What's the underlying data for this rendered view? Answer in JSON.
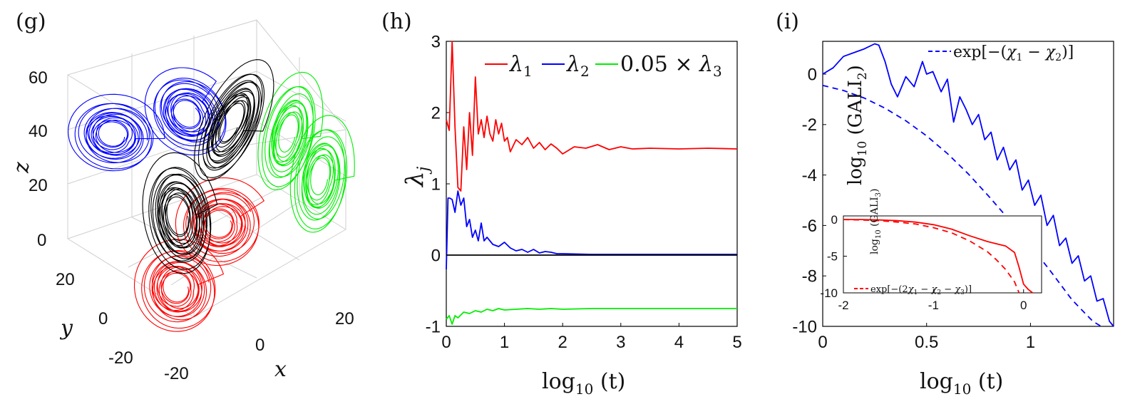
{
  "chart_data": [
    {
      "panel": "(g)",
      "type": "line",
      "projection": "3d",
      "xlabel": "x",
      "ylabel": "y",
      "zlabel": "z",
      "x_ticks": [
        "-20",
        "0",
        "20"
      ],
      "y_ticks": [
        "-20",
        "0",
        "20"
      ],
      "z_ticks": [
        "0",
        "20",
        "40",
        "60"
      ],
      "zlim": [
        0,
        60
      ],
      "series": [
        {
          "color": "#0000ff"
        },
        {
          "color": "#000000"
        },
        {
          "color": "#00ee00"
        },
        {
          "color": "#ff0000"
        }
      ],
      "grid": true
    },
    {
      "panel": "(h)",
      "type": "line",
      "xlabel": "log10 (t)",
      "ylabel": "λj",
      "xlim": [
        0,
        5
      ],
      "ylim": [
        -1,
        3
      ],
      "x_ticks": [
        "0",
        "1",
        "2",
        "3",
        "4",
        "5"
      ],
      "y_ticks": [
        "-1",
        "0",
        "1",
        "2",
        "3"
      ],
      "legend": {
        "placement": "top-right",
        "entries": [
          "λ1",
          "λ2",
          "0.05 × λ3"
        ]
      },
      "series": [
        {
          "name": "λ1",
          "color": "#ff0000",
          "x": [
            0.0,
            0.05,
            0.1,
            0.15,
            0.2,
            0.25,
            0.3,
            0.35,
            0.4,
            0.45,
            0.5,
            0.55,
            0.6,
            0.65,
            0.7,
            0.75,
            0.8,
            0.85,
            0.9,
            0.95,
            1.0,
            1.05,
            1.1,
            1.2,
            1.3,
            1.4,
            1.5,
            1.6,
            1.7,
            1.8,
            1.9,
            2.0,
            2.2,
            2.4,
            2.6,
            2.8,
            3.0,
            3.2,
            3.5,
            4.0,
            4.5,
            5.0
          ],
          "y": [
            1.9,
            1.75,
            3.0,
            1.8,
            0.95,
            0.9,
            1.8,
            1.2,
            2.0,
            1.4,
            2.5,
            1.7,
            1.9,
            1.65,
            1.95,
            1.7,
            1.6,
            1.9,
            1.7,
            1.85,
            1.6,
            1.65,
            1.45,
            1.62,
            1.55,
            1.65,
            1.5,
            1.58,
            1.48,
            1.56,
            1.5,
            1.42,
            1.52,
            1.5,
            1.55,
            1.48,
            1.52,
            1.49,
            1.5,
            1.49,
            1.5,
            1.49
          ]
        },
        {
          "name": "λ2",
          "color": "#0000ff",
          "x": [
            0.0,
            0.03,
            0.06,
            0.1,
            0.15,
            0.2,
            0.25,
            0.3,
            0.35,
            0.4,
            0.45,
            0.5,
            0.55,
            0.6,
            0.65,
            0.7,
            0.8,
            0.9,
            1.0,
            1.1,
            1.2,
            1.3,
            1.4,
            1.5,
            1.6,
            1.7,
            1.8,
            1.9,
            2.0,
            2.5,
            3.0,
            4.0,
            5.0
          ],
          "y": [
            -0.2,
            0.8,
            0.8,
            0.78,
            0.6,
            0.9,
            0.7,
            0.8,
            0.4,
            0.5,
            0.25,
            0.35,
            0.2,
            0.45,
            0.2,
            0.25,
            0.15,
            0.12,
            0.18,
            0.1,
            0.06,
            0.08,
            0.04,
            0.08,
            0.03,
            0.05,
            0.04,
            0.02,
            0.02,
            0.01,
            0.01,
            0.01,
            0.01
          ]
        },
        {
          "name": "0.05 × λ3",
          "color": "#00ee00",
          "x": [
            0.0,
            0.05,
            0.1,
            0.15,
            0.2,
            0.3,
            0.4,
            0.5,
            0.6,
            0.7,
            0.8,
            0.9,
            1.0,
            1.2,
            1.4,
            1.6,
            1.8,
            2.0,
            2.5,
            3.0,
            4.0,
            5.0
          ],
          "y": [
            -0.9,
            -0.85,
            -0.97,
            -0.85,
            -0.88,
            -0.8,
            -0.82,
            -0.78,
            -0.8,
            -0.76,
            -0.78,
            -0.75,
            -0.77,
            -0.76,
            -0.75,
            -0.76,
            -0.75,
            -0.76,
            -0.75,
            -0.75,
            -0.75,
            -0.75
          ]
        },
        {
          "color": "#000000",
          "x": [
            0,
            5
          ],
          "y": [
            0,
            0
          ]
        }
      ]
    },
    {
      "panel": "(i)",
      "type": "line",
      "xlabel": "log10 (t)",
      "ylabel": "log10 (GALI2)",
      "xlim": [
        0,
        1.4
      ],
      "ylim": [
        -10,
        1.3
      ],
      "x_ticks": [
        "0",
        "0.5",
        "1"
      ],
      "y_ticks": [
        "-10",
        "-8",
        "-6",
        "-4",
        "-2",
        "0"
      ],
      "legend": {
        "placement": "top-right",
        "entries": [
          "exp[−(χ1 − χ2)]"
        ]
      },
      "series": [
        {
          "name": "GALI2",
          "color": "#0000ff",
          "x": [
            0.0,
            0.05,
            0.1,
            0.15,
            0.2,
            0.25,
            0.27,
            0.3,
            0.33,
            0.36,
            0.4,
            0.44,
            0.48,
            0.5,
            0.53,
            0.57,
            0.6,
            0.63,
            0.66,
            0.69,
            0.72,
            0.75,
            0.78,
            0.81,
            0.84,
            0.87,
            0.9,
            0.93,
            0.96,
            0.99,
            1.02,
            1.05,
            1.08,
            1.11,
            1.14,
            1.17,
            1.2,
            1.23,
            1.26,
            1.29,
            1.32,
            1.35,
            1.38,
            1.4
          ],
          "y": [
            0.0,
            0.25,
            0.7,
            0.85,
            1.0,
            1.2,
            1.15,
            0.5,
            -0.4,
            -0.9,
            -0.1,
            -0.5,
            0.5,
            0.0,
            0.1,
            -0.7,
            -0.2,
            -1.9,
            -0.9,
            -1.4,
            -2.0,
            -1.6,
            -2.6,
            -2.3,
            -3.4,
            -2.9,
            -3.8,
            -3.4,
            -4.6,
            -4.2,
            -5.2,
            -4.8,
            -6.0,
            -5.6,
            -6.8,
            -6.5,
            -7.5,
            -7.2,
            -8.2,
            -8.0,
            -9.0,
            -8.9,
            -9.8,
            -10.0
          ]
        },
        {
          "name": "exp[−(χ1 − χ2)]",
          "color": "#0000ff",
          "dashed": true,
          "x": [
            0.0,
            0.1,
            0.2,
            0.3,
            0.4,
            0.5,
            0.6,
            0.7,
            0.8,
            0.9,
            1.0,
            1.1,
            1.2,
            1.3,
            1.34
          ],
          "y": [
            -0.45,
            -0.65,
            -0.95,
            -1.35,
            -1.85,
            -2.45,
            -3.15,
            -3.95,
            -4.85,
            -5.8,
            -6.8,
            -7.85,
            -8.95,
            -9.8,
            -10.0
          ]
        }
      ],
      "inset": {
        "ylabel": "log10 (GALI3)",
        "xlim": [
          -2,
          0.2
        ],
        "ylim": [
          -10,
          0.5
        ],
        "x_ticks": [
          "-2",
          "-1",
          "0"
        ],
        "y_ticks": [
          "-10",
          "-5",
          "0"
        ],
        "legend": {
          "placement": "bottom-left",
          "entries": [
            "exp[−(2χ1 − χ2 − χ3)]"
          ]
        },
        "series": [
          {
            "name": "GALI3",
            "color": "#ff0000",
            "x": [
              -2.0,
              -1.8,
              -1.6,
              -1.4,
              -1.2,
              -1.0,
              -0.8,
              -0.6,
              -0.4,
              -0.2,
              -0.1,
              -0.05,
              0.0,
              0.05,
              0.1
            ],
            "y": [
              0.0,
              0.0,
              -0.05,
              -0.15,
              -0.35,
              -0.7,
              -1.3,
              -2.2,
              -3.0,
              -3.6,
              -4.5,
              -6.5,
              -8.8,
              -9.5,
              -10.0
            ]
          },
          {
            "name": "exp[−(2χ1 − χ2 − χ3)]",
            "color": "#ff0000",
            "dashed": true,
            "x": [
              -2.0,
              -1.8,
              -1.6,
              -1.4,
              -1.2,
              -1.0,
              -0.8,
              -0.6,
              -0.4,
              -0.3,
              -0.2,
              -0.1,
              -0.05
            ],
            "y": [
              0.0,
              -0.05,
              -0.15,
              -0.35,
              -0.6,
              -1.1,
              -1.8,
              -2.9,
              -4.4,
              -5.5,
              -6.8,
              -8.5,
              -10.0
            ]
          }
        ]
      }
    }
  ]
}
